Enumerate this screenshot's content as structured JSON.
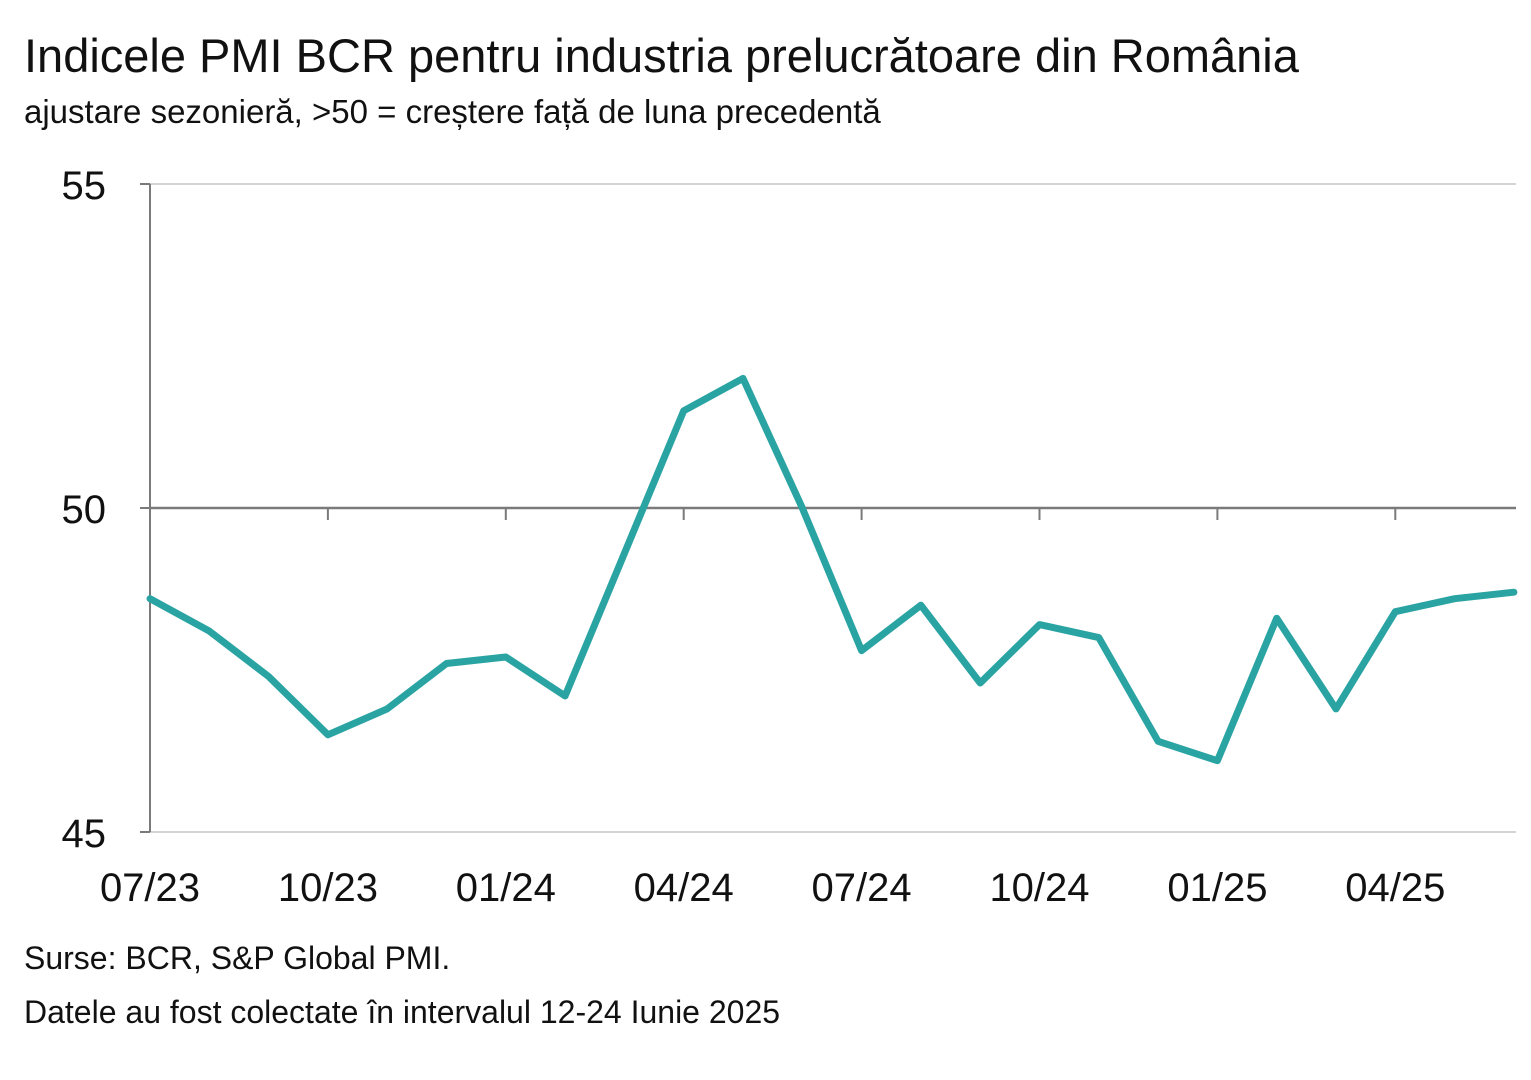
{
  "title": "Indicele PMI BCR pentru industria prelucrătoare din România",
  "subtitle": "ajustare sezonieră, >50 = creștere față de luna precedentă",
  "source": "Surse: BCR, S&P Global PMI.",
  "note": "Datele au fost colectate în intervalul 12-24 Iunie 2025",
  "chart_data": {
    "type": "line",
    "title": "Indicele PMI BCR pentru industria prelucrătoare din România",
    "subtitle": "ajustare sezonieră, >50 = creștere față de luna precedentă",
    "xlabel": "",
    "ylabel": "",
    "ylim": [
      45,
      55
    ],
    "yticks": [
      45,
      50,
      55
    ],
    "ytick_labels": [
      "45",
      "50",
      "55"
    ],
    "grid": true,
    "reference_line": 50,
    "line_color": "#2aa3a3",
    "x": [
      "07/23",
      "08/23",
      "09/23",
      "10/23",
      "11/23",
      "12/23",
      "01/24",
      "02/24",
      "03/24",
      "04/24",
      "05/24",
      "06/24",
      "07/24",
      "08/24",
      "09/24",
      "10/24",
      "11/24",
      "12/24",
      "01/25",
      "02/25",
      "03/25",
      "04/25",
      "05/25",
      "06/25"
    ],
    "xtick_labels": [
      "07/23",
      "10/23",
      "01/24",
      "04/24",
      "07/24",
      "10/24",
      "01/25",
      "04/25"
    ],
    "xtick_label_indices": [
      0,
      3,
      6,
      9,
      12,
      15,
      18,
      21
    ],
    "series": [
      {
        "name": "PMI BCR",
        "values": [
          48.6,
          48.1,
          47.4,
          46.5,
          46.9,
          47.6,
          47.7,
          47.1,
          49.3,
          51.5,
          52.0,
          50.0,
          47.8,
          48.5,
          47.3,
          48.2,
          48.0,
          46.4,
          46.1,
          48.3,
          46.9,
          48.4,
          48.6,
          48.7
        ]
      }
    ]
  }
}
